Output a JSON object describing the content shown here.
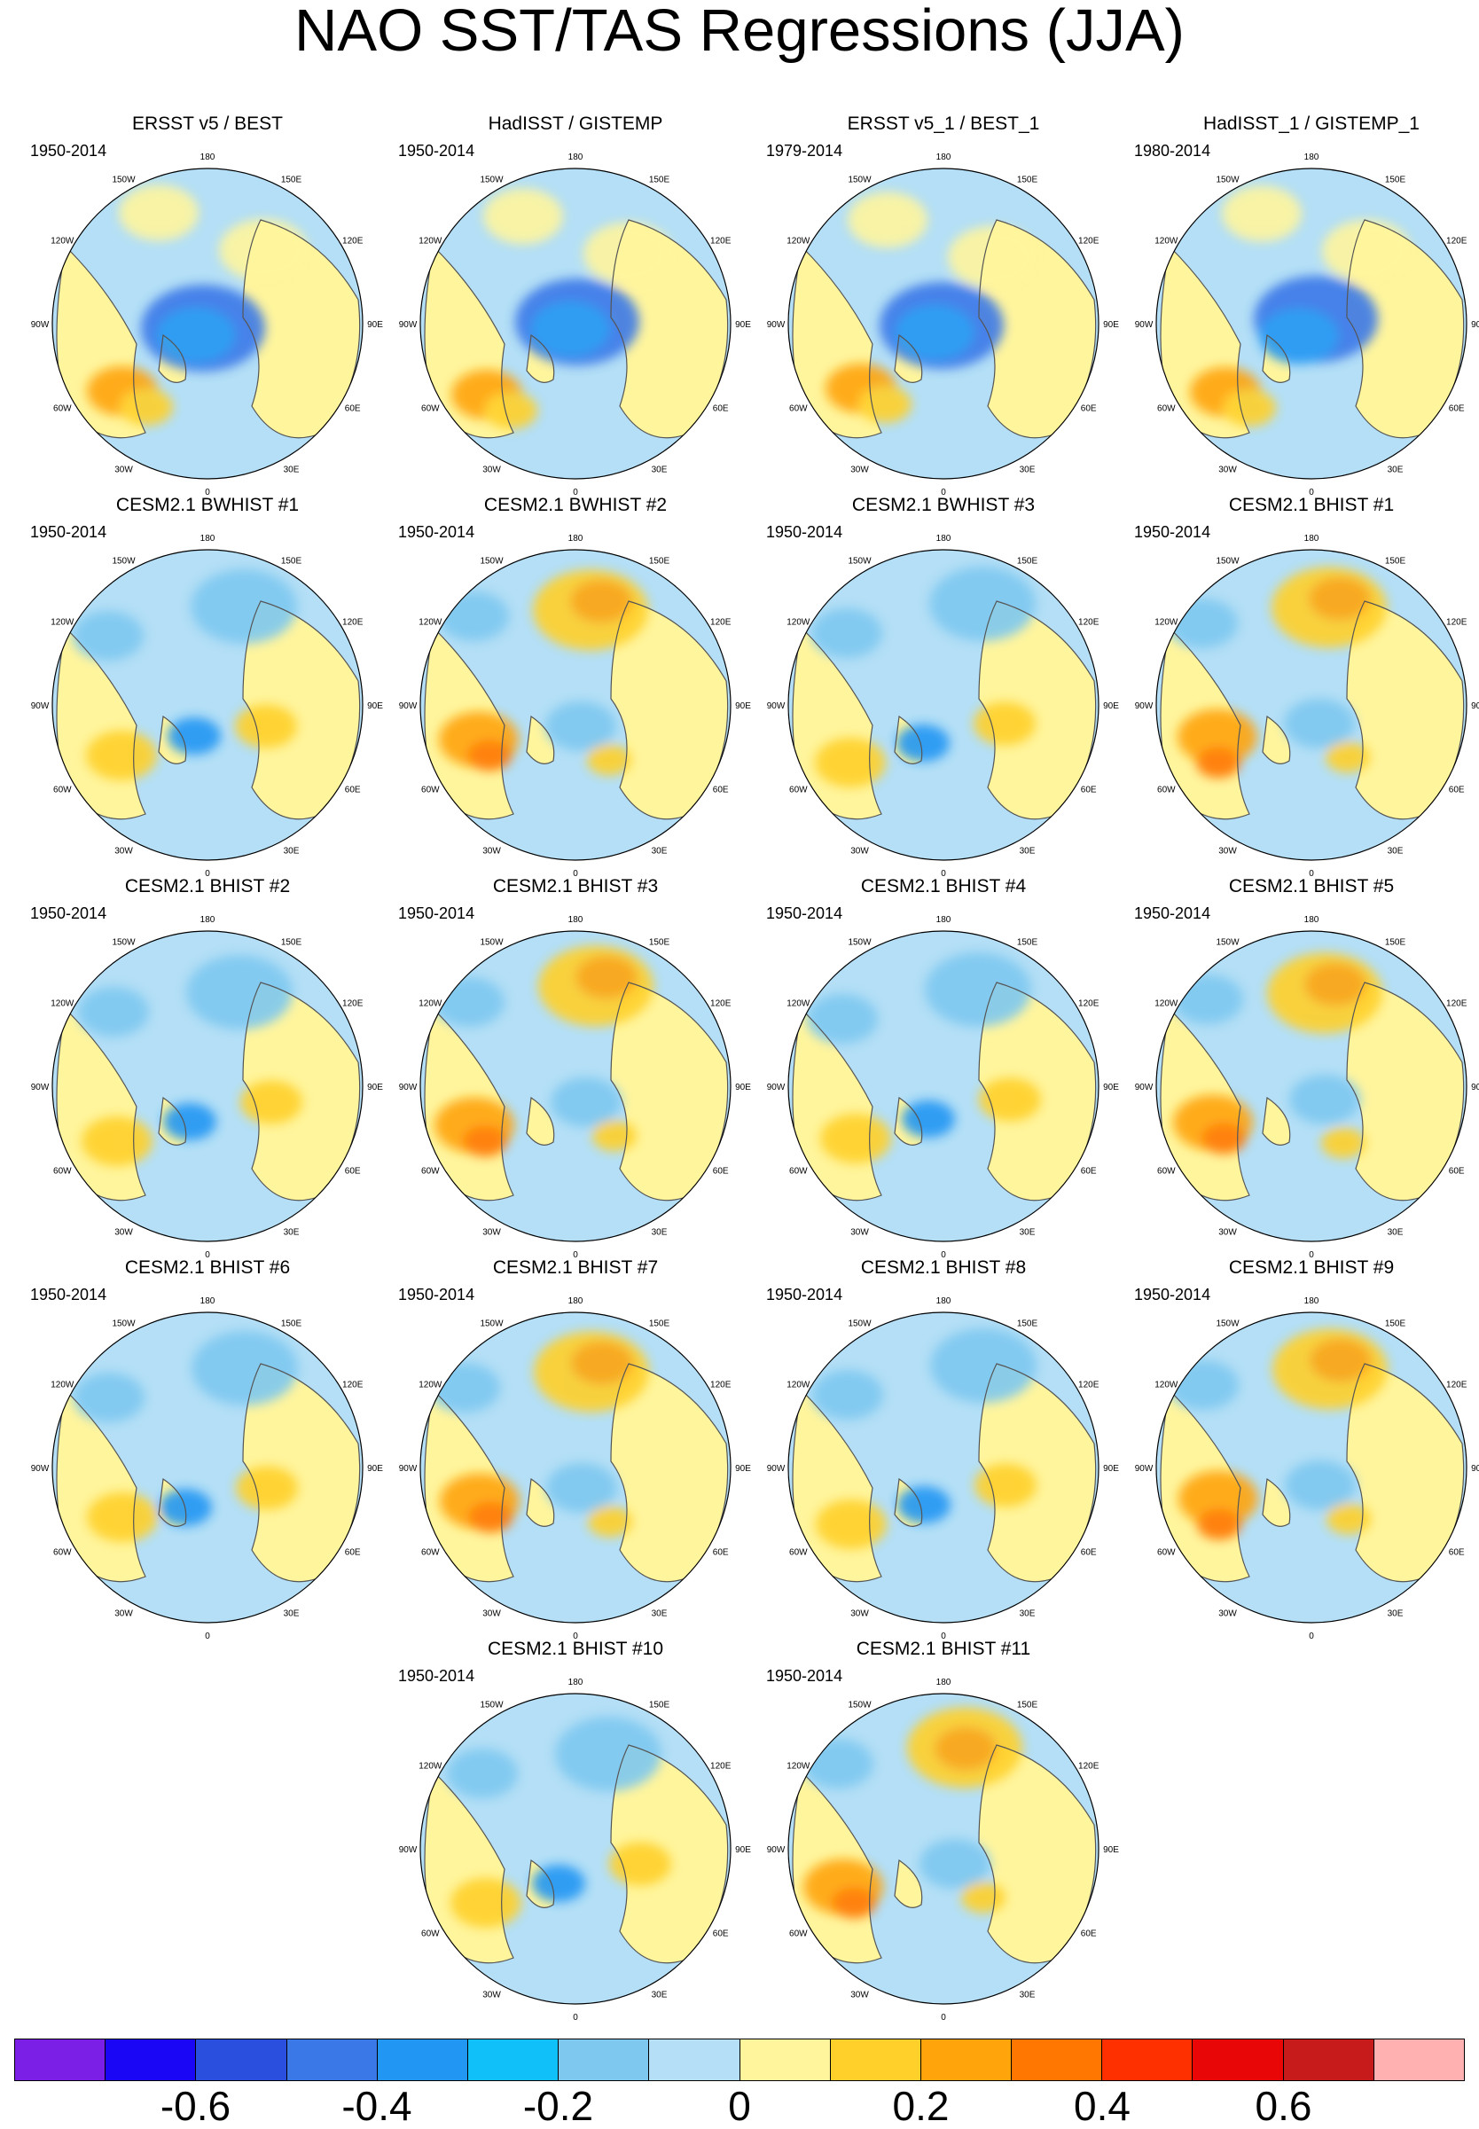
{
  "title": "NAO SST/TAS Regressions (JJA)",
  "lon_labels": [
    "180",
    "150E",
    "120E",
    "90E",
    "60E",
    "30E",
    "0",
    "30W",
    "60W",
    "90W",
    "120W",
    "150W"
  ],
  "panels": [
    {
      "title": "ERSST v5 / BEST",
      "period": "1950-2014"
    },
    {
      "title": "HadISST / GISTEMP",
      "period": "1950-2014"
    },
    {
      "title": "ERSST v5_1 / BEST_1",
      "period": "1979-2014"
    },
    {
      "title": "HadISST_1 / GISTEMP_1",
      "period": "1980-2014"
    },
    {
      "title": "CESM2.1 BWHIST #1",
      "period": "1950-2014"
    },
    {
      "title": "CESM2.1 BWHIST #2",
      "period": "1950-2014"
    },
    {
      "title": "CESM2.1 BWHIST #3",
      "period": "1950-2014"
    },
    {
      "title": "CESM2.1 BHIST #1",
      "period": "1950-2014"
    },
    {
      "title": "CESM2.1 BHIST #2",
      "period": "1950-2014"
    },
    {
      "title": "CESM2.1 BHIST #3",
      "period": "1950-2014"
    },
    {
      "title": "CESM2.1 BHIST #4",
      "period": "1950-2014"
    },
    {
      "title": "CESM2.1 BHIST #5",
      "period": "1950-2014"
    },
    {
      "title": "CESM2.1 BHIST #6",
      "period": "1950-2014"
    },
    {
      "title": "CESM2.1 BHIST #7",
      "period": "1950-2014"
    },
    {
      "title": "CESM2.1 BHIST #8",
      "period": "1950-2014"
    },
    {
      "title": "CESM2.1 BHIST #9",
      "period": "1950-2014"
    },
    {
      "title": "CESM2.1 BHIST #10",
      "period": "1950-2014"
    },
    {
      "title": "CESM2.1 BHIST #11",
      "period": "1950-2014"
    }
  ],
  "colorbar": {
    "colors": [
      "#7b1fe6",
      "#1a06f5",
      "#2a4fde",
      "#3a78e8",
      "#2196f3",
      "#10c0f8",
      "#7ec8f0",
      "#b4dff6",
      "#fff59d",
      "#ffd02a",
      "#ffa40b",
      "#ff7600",
      "#ff3000",
      "#e80606",
      "#c71b1b",
      "#ffb0b0"
    ],
    "labels": [
      "-0.6",
      "-0.4",
      "-0.2",
      "0",
      "0.2",
      "0.4",
      "0.6"
    ]
  },
  "colors": {
    "ocean_base": "#b4dff6",
    "land_base": "#fff59d",
    "coast": "#555555",
    "globe_edge": "#000000"
  }
}
